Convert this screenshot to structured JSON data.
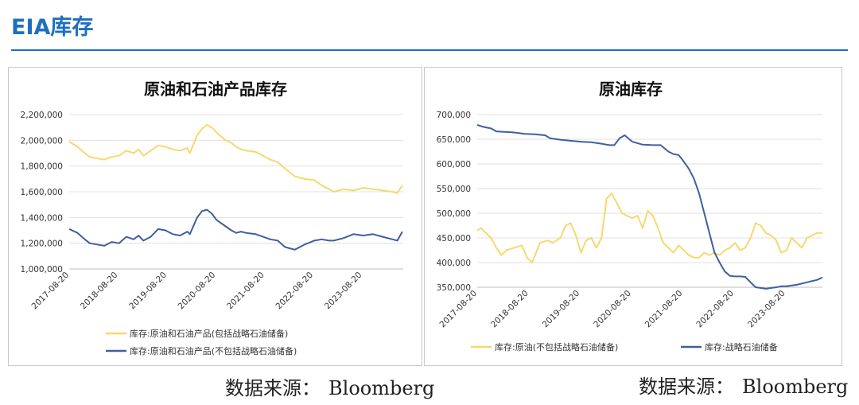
{
  "page": {
    "title": "EIA库存",
    "source_label": "数据来源：",
    "source_value": "Bloomberg"
  },
  "chart_data": [
    {
      "type": "line",
      "title": "原油和石油产品库存",
      "x_tick_labels": [
        "2017-08-20",
        "2018-08-20",
        "2019-08-20",
        "2020-08-20",
        "2021-08-20",
        "2022-08-20",
        "2023-08-20"
      ],
      "x_range": [
        2017.58,
        2024.42
      ],
      "y_ticks": [
        1000000,
        1200000,
        1400000,
        1600000,
        1800000,
        2000000,
        2200000
      ],
      "y_tick_labels": [
        "1,000,000",
        "1,200,000",
        "1,400,000",
        "1,600,000",
        "1,800,000",
        "2,000,000",
        "2,200,000"
      ],
      "ylim": [
        1000000,
        2200000
      ],
      "grid": "horizontal",
      "legend_position": "bottom",
      "series": [
        {
          "name": "库存:原油和石油产品(包括战略石油储备)",
          "color": "#f7d86e",
          "x": [
            2017.58,
            2017.75,
            2017.9,
            2018.0,
            2018.15,
            2018.3,
            2018.45,
            2018.6,
            2018.75,
            2018.9,
            2019.0,
            2019.1,
            2019.25,
            2019.4,
            2019.55,
            2019.7,
            2019.85,
            2020.0,
            2020.05,
            2020.2,
            2020.3,
            2020.4,
            2020.5,
            2020.6,
            2020.75,
            2020.9,
            2021.0,
            2021.1,
            2021.2,
            2021.4,
            2021.55,
            2021.7,
            2021.85,
            2022.0,
            2022.2,
            2022.4,
            2022.6,
            2022.75,
            2022.9,
            2023.0,
            2023.2,
            2023.4,
            2023.6,
            2023.8,
            2024.0,
            2024.2,
            2024.3,
            2024.4
          ],
          "y": [
            1990000,
            1950000,
            1900000,
            1870000,
            1860000,
            1850000,
            1870000,
            1880000,
            1920000,
            1900000,
            1930000,
            1880000,
            1920000,
            1960000,
            1950000,
            1930000,
            1920000,
            1940000,
            1900000,
            2040000,
            2090000,
            2120000,
            2100000,
            2060000,
            2010000,
            1980000,
            1950000,
            1930000,
            1920000,
            1910000,
            1880000,
            1850000,
            1830000,
            1780000,
            1720000,
            1700000,
            1690000,
            1650000,
            1620000,
            1600000,
            1620000,
            1610000,
            1630000,
            1620000,
            1610000,
            1600000,
            1590000,
            1650000
          ]
        },
        {
          "name": "库存:原油和石油产品(不包括战略石油储备)",
          "color": "#3f5fa0",
          "x": [
            2017.58,
            2017.75,
            2017.9,
            2018.0,
            2018.15,
            2018.3,
            2018.45,
            2018.6,
            2018.75,
            2018.9,
            2019.0,
            2019.1,
            2019.25,
            2019.4,
            2019.55,
            2019.7,
            2019.85,
            2020.0,
            2020.05,
            2020.2,
            2020.3,
            2020.4,
            2020.5,
            2020.6,
            2020.75,
            2020.9,
            2021.0,
            2021.1,
            2021.2,
            2021.4,
            2021.55,
            2021.7,
            2021.85,
            2022.0,
            2022.2,
            2022.4,
            2022.6,
            2022.75,
            2022.9,
            2023.0,
            2023.2,
            2023.4,
            2023.6,
            2023.8,
            2024.0,
            2024.2,
            2024.3,
            2024.4
          ],
          "y": [
            1310000,
            1280000,
            1230000,
            1200000,
            1190000,
            1180000,
            1210000,
            1200000,
            1250000,
            1230000,
            1260000,
            1220000,
            1250000,
            1310000,
            1300000,
            1270000,
            1260000,
            1290000,
            1270000,
            1400000,
            1450000,
            1460000,
            1430000,
            1380000,
            1340000,
            1300000,
            1280000,
            1290000,
            1280000,
            1270000,
            1250000,
            1230000,
            1220000,
            1170000,
            1150000,
            1190000,
            1220000,
            1230000,
            1220000,
            1220000,
            1240000,
            1270000,
            1260000,
            1270000,
            1250000,
            1230000,
            1220000,
            1290000
          ]
        }
      ]
    },
    {
      "type": "line",
      "title": "原油库存",
      "x_tick_labels": [
        "2017-08-20",
        "2018-08-20",
        "2019-08-20",
        "2020-08-20",
        "2021-08-20",
        "2022-08-20",
        "2023-08-20"
      ],
      "x_range": [
        2017.58,
        2024.3
      ],
      "y_ticks": [
        350000,
        400000,
        450000,
        500000,
        550000,
        600000,
        650000,
        700000
      ],
      "y_tick_labels": [
        "350,000",
        "400,000",
        "450,000",
        "500,000",
        "550,000",
        "600,000",
        "650,000",
        "700,000"
      ],
      "ylim": [
        350000,
        700000
      ],
      "grid": "horizontal",
      "legend_position": "bottom",
      "series": [
        {
          "name": "库存:原油(不包括战略石油储备)",
          "color": "#f7d86e",
          "x": [
            2017.58,
            2017.65,
            2017.75,
            2017.85,
            2017.95,
            2018.05,
            2018.15,
            2018.3,
            2018.45,
            2018.55,
            2018.65,
            2018.8,
            2018.95,
            2019.05,
            2019.2,
            2019.3,
            2019.4,
            2019.5,
            2019.6,
            2019.7,
            2019.8,
            2019.9,
            2020.0,
            2020.1,
            2020.2,
            2020.3,
            2020.4,
            2020.5,
            2020.6,
            2020.7,
            2020.8,
            2020.9,
            2021.0,
            2021.1,
            2021.2,
            2021.3,
            2021.4,
            2021.5,
            2021.6,
            2021.7,
            2021.8,
            2021.9,
            2022.0,
            2022.1,
            2022.2,
            2022.3,
            2022.4,
            2022.5,
            2022.6,
            2022.7,
            2022.8,
            2022.9,
            2023.0,
            2023.1,
            2023.2,
            2023.3,
            2023.4,
            2023.5,
            2023.6,
            2023.7,
            2023.8,
            2023.9,
            2024.0,
            2024.1,
            2024.2,
            2024.3
          ],
          "y": [
            465000,
            470000,
            460000,
            450000,
            430000,
            415000,
            425000,
            430000,
            435000,
            410000,
            400000,
            440000,
            445000,
            440000,
            450000,
            475000,
            480000,
            455000,
            420000,
            445000,
            450000,
            430000,
            450000,
            530000,
            540000,
            520000,
            500000,
            495000,
            490000,
            495000,
            470000,
            505000,
            495000,
            470000,
            440000,
            430000,
            420000,
            435000,
            425000,
            415000,
            410000,
            410000,
            420000,
            415000,
            420000,
            415000,
            425000,
            430000,
            440000,
            425000,
            430000,
            450000,
            480000,
            475000,
            460000,
            455000,
            445000,
            420000,
            425000,
            450000,
            440000,
            430000,
            450000,
            455000,
            460000,
            460000
          ]
        },
        {
          "name": "库存:战略石油储备",
          "color": "#3f5fa0",
          "x": [
            2017.58,
            2017.7,
            2017.85,
            2017.95,
            2018.1,
            2018.25,
            2018.35,
            2018.5,
            2018.7,
            2018.9,
            2019.0,
            2019.2,
            2019.4,
            2019.6,
            2019.8,
            2020.0,
            2020.15,
            2020.25,
            2020.35,
            2020.45,
            2020.6,
            2020.8,
            2021.0,
            2021.15,
            2021.3,
            2021.4,
            2021.5,
            2021.6,
            2021.7,
            2021.8,
            2021.9,
            2022.0,
            2022.1,
            2022.2,
            2022.3,
            2022.4,
            2022.5,
            2022.6,
            2022.7,
            2022.8,
            2022.9,
            2023.0,
            2023.2,
            2023.4,
            2023.5,
            2023.6,
            2023.8,
            2024.0,
            2024.2,
            2024.3
          ],
          "y": [
            679000,
            675000,
            672000,
            666000,
            665000,
            664000,
            663000,
            661000,
            660000,
            658000,
            652000,
            649000,
            647000,
            645000,
            644000,
            641000,
            638000,
            638000,
            652000,
            658000,
            645000,
            639000,
            638000,
            638000,
            625000,
            620000,
            618000,
            605000,
            590000,
            570000,
            540000,
            500000,
            460000,
            420000,
            400000,
            382000,
            373000,
            372000,
            372000,
            371000,
            360000,
            350000,
            347000,
            350000,
            352000,
            352000,
            355000,
            360000,
            365000,
            370000
          ]
        }
      ]
    }
  ]
}
